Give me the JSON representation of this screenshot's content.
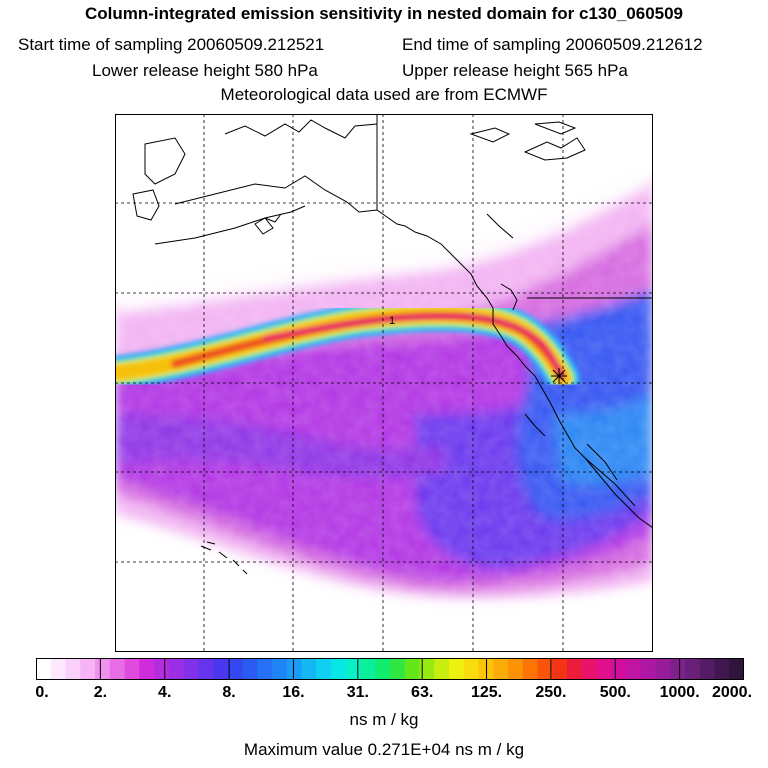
{
  "header": {
    "title": "Column-integrated emission sensitivity in nested domain for c130_060509",
    "start_time": "Start time of sampling 20060509.212521",
    "end_time": "End time of sampling 20060509.212612",
    "lower_release": "Lower release height  580 hPa",
    "upper_release": "Upper release height  565 hPa",
    "met_data": "Meteorological data used are from ECMWF"
  },
  "map": {
    "release_marker_label": "1",
    "colors": {
      "land_line": "#000000",
      "grid_line": "#000000"
    }
  },
  "colorbar": {
    "tick_labels": [
      "0.",
      "2.",
      "4.",
      "8.",
      "16.",
      "31.",
      "63.",
      "125.",
      "250.",
      "500.",
      "1000.",
      "2000."
    ],
    "colors": [
      "#ffffff",
      "#fde8fd",
      "#fbd0fb",
      "#f6b3f6",
      "#ef92ef",
      "#e86ee8",
      "#de4bde",
      "#cf2cdc",
      "#b52ce0",
      "#9c2ee3",
      "#8131e8",
      "#6634ec",
      "#4c37f0",
      "#3447f2",
      "#2a5cf4",
      "#2570f5",
      "#1f85f6",
      "#1a9cf6",
      "#14b6f4",
      "#0fd0f0",
      "#09e6e6",
      "#08f0c8",
      "#0af09a",
      "#10ec6c",
      "#30e640",
      "#64e61c",
      "#99ea10",
      "#c8ee10",
      "#eef010",
      "#f8dc0c",
      "#fac40a",
      "#fbac08",
      "#fc9206",
      "#fc7404",
      "#fa5408",
      "#f43416",
      "#ec1c3c",
      "#e8146c",
      "#e0108c",
      "#d0109c",
      "#c014a4",
      "#ac18a4",
      "#961c9c",
      "#80208c",
      "#6a2078",
      "#541c64",
      "#401850",
      "#30143c"
    ],
    "unit_label": "ns m / kg",
    "max_value_label": "Maximum value  0.271E+04 ns m / kg"
  }
}
